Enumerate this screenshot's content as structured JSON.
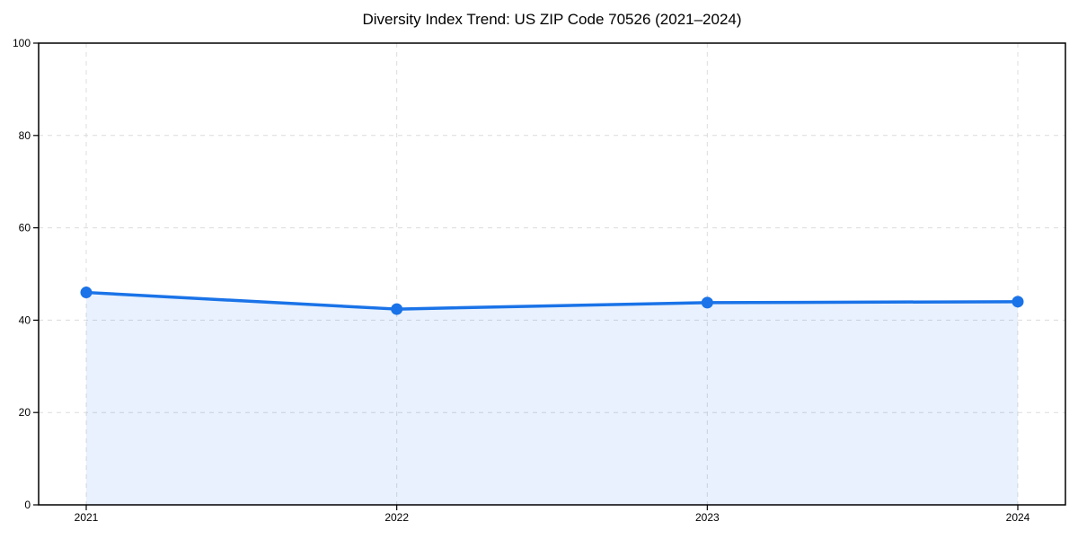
{
  "figure": {
    "background": "#ffffff"
  },
  "chart_data": {
    "type": "line",
    "title": "Diversity Index Trend: US ZIP Code 70526 (2021–2024)",
    "xlabel": "",
    "ylabel": "",
    "categories": [
      "2021",
      "2022",
      "2023",
      "2024"
    ],
    "series": [
      {
        "name": "Diversity Index",
        "values": [
          46.0,
          42.4,
          43.8,
          44.0
        ]
      }
    ],
    "ylim": [
      0,
      100
    ],
    "yticks": [
      0,
      20,
      40,
      60,
      80,
      100
    ],
    "grid": true,
    "grid_style": "dashed",
    "area_fill": true,
    "marker": "circle",
    "legend_visible": false,
    "colors": {
      "line": "#1a73e8",
      "marker": "#1a73e8",
      "area_fill_rgba": "rgba(26,115,232,0.10)",
      "grid": "#dcdcdc",
      "spine": "#000000",
      "tick_text": "#000000",
      "background": "#ffffff"
    }
  }
}
